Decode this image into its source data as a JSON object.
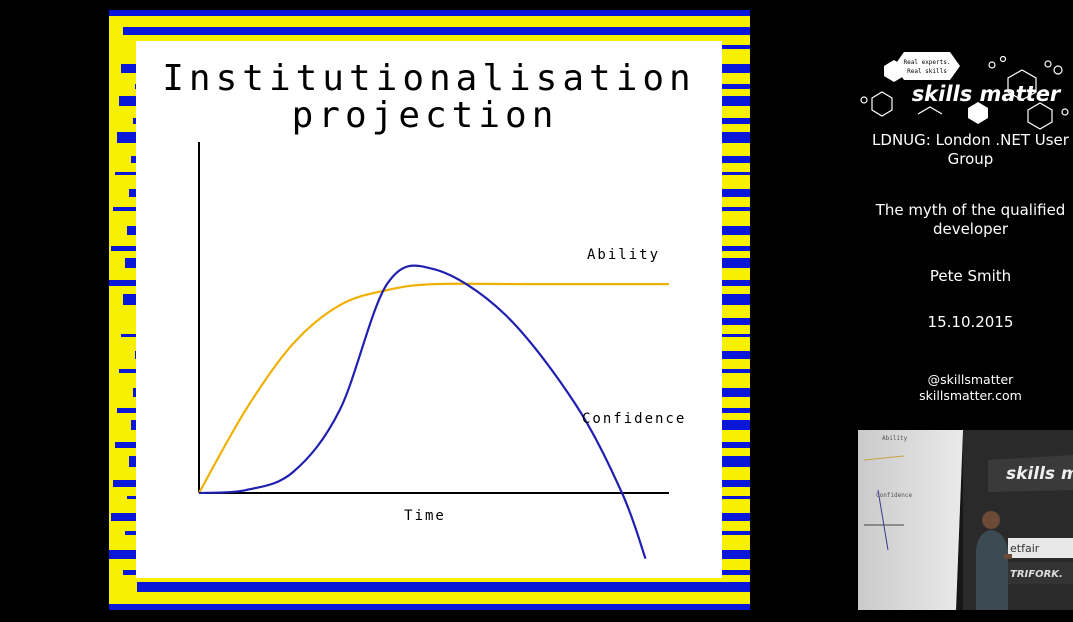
{
  "slide": {
    "title_line1": "Institutionalisation",
    "title_line2": "projection"
  },
  "chart_data": {
    "type": "line",
    "xlabel": "Time",
    "ylabel": "",
    "grid": false,
    "legend": "inline labels at line ends",
    "series": [
      {
        "name": "Ability",
        "color": "#f0b000",
        "shape": "rises steeply then plateaus",
        "points": [
          [
            0,
            0
          ],
          [
            0.1,
            0.28
          ],
          [
            0.2,
            0.5
          ],
          [
            0.3,
            0.63
          ],
          [
            0.4,
            0.68
          ],
          [
            0.5,
            0.7
          ],
          [
            0.7,
            0.7
          ],
          [
            1.0,
            0.7
          ]
        ]
      },
      {
        "name": "Confidence",
        "color": "#2020b0",
        "shape": "rises slowly, spikes above ability, then crashes below the time axis",
        "points": [
          [
            0,
            0
          ],
          [
            0.1,
            0.01
          ],
          [
            0.2,
            0.07
          ],
          [
            0.3,
            0.28
          ],
          [
            0.4,
            0.7
          ],
          [
            0.5,
            0.75
          ],
          [
            0.65,
            0.6
          ],
          [
            0.8,
            0.3
          ],
          [
            0.9,
            0.0
          ],
          [
            0.95,
            -0.22
          ]
        ]
      }
    ]
  },
  "sidebar": {
    "logo_tagline1": "Real experts.",
    "logo_tagline2": "Real skills",
    "logo_text": "skills matter",
    "event": "LDNUG: London .NET User Group",
    "talk": "The myth of the qualified developer",
    "speaker": "Pete Smith",
    "date": "15.10.2015",
    "handle": "@skillsmatter",
    "site": "skillsmatter.com"
  },
  "colors": {
    "stripe_yellow": "#f7f000",
    "stripe_blue": "#0a17d8",
    "background": "#000000",
    "ability": "#f0b000",
    "confidence": "#2020b0"
  },
  "video_thumbnail": {
    "screen_text_1": "Ability",
    "screen_text_2": "Confidence",
    "banner_text": "skills m",
    "sponsor_1": "etfair",
    "sponsor_2": "TRIFORK."
  }
}
